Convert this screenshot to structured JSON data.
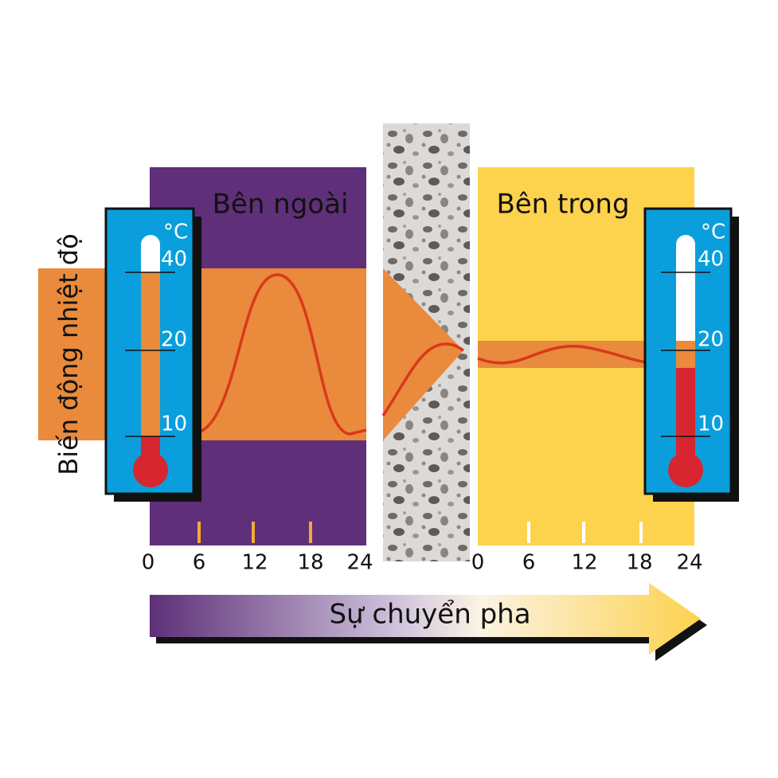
{
  "y_label": "Biến động nhiệt độ",
  "outside": {
    "title": "Bên ngoài",
    "ticks": [
      "0",
      "6",
      "12",
      "18",
      "24"
    ],
    "thermometer": {
      "unit": "°C",
      "labels": [
        "40",
        "20",
        "10"
      ]
    }
  },
  "inside": {
    "title": "Bên trong",
    "ticks": [
      "0",
      "6",
      "12",
      "18",
      "24"
    ],
    "thermometer": {
      "unit": "°C",
      "labels": [
        "40",
        "20",
        "10"
      ]
    }
  },
  "arrow_label": "Sự chuyển pha"
}
